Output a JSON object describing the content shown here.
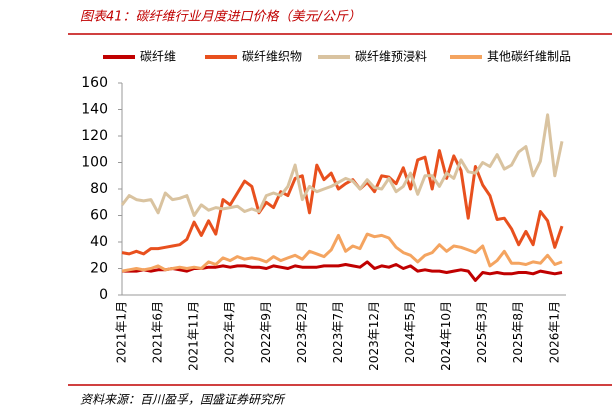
{
  "chart_data": {
    "type": "line",
    "title": "图表41：碳纤维行业月度进口价格（美元/公斤）",
    "source": "资料来源：百川盈孚，国盛证券研究所",
    "categories": [
      "2021年1月",
      null,
      null,
      null,
      null,
      "2021年6月",
      null,
      null,
      null,
      null,
      "2021年11月",
      null,
      null,
      null,
      null,
      "2022年4月",
      null,
      null,
      null,
      null,
      "2022年9月",
      null,
      null,
      null,
      null,
      "2023年2月",
      null,
      null,
      null,
      null,
      "2023年7月",
      null,
      null,
      null,
      null,
      "2023年12月",
      null,
      null,
      null,
      null,
      "2024年5月",
      null,
      null,
      null,
      null,
      "2024年10月",
      null,
      null,
      null,
      null,
      "2025年3月",
      null,
      null,
      null,
      null,
      "2025年8月",
      null,
      null,
      null,
      null,
      "2026年1月",
      null
    ],
    "ylim": [
      0,
      160
    ],
    "yticks": [
      0,
      20,
      40,
      60,
      80,
      100,
      120,
      140,
      160
    ],
    "series": [
      {
        "name": "碳纤维",
        "color": "#c00000",
        "width": 3,
        "values": [
          18,
          18,
          18,
          19,
          18,
          19,
          19,
          20,
          19,
          18,
          20,
          20,
          21,
          21,
          22,
          21,
          22,
          22,
          21,
          21,
          20,
          22,
          21,
          20,
          22,
          21,
          21,
          21,
          22,
          22,
          22,
          23,
          22,
          21,
          25,
          20,
          22,
          21,
          23,
          20,
          22,
          18,
          19,
          18,
          18,
          17,
          18,
          19,
          18,
          11,
          17,
          16,
          17,
          16,
          16,
          17,
          17,
          16,
          18,
          17,
          16,
          17
        ]
      },
      {
        "name": "碳纤维织物",
        "color": "#e8501e",
        "width": 3,
        "values": [
          32,
          31,
          33,
          31,
          35,
          35,
          36,
          37,
          38,
          42,
          55,
          45,
          56,
          46,
          72,
          68,
          77,
          86,
          82,
          62,
          70,
          66,
          78,
          75,
          88,
          90,
          62,
          98,
          87,
          92,
          80,
          84,
          87,
          80,
          85,
          78,
          90,
          89,
          84,
          96,
          80,
          102,
          104,
          80,
          109,
          88,
          105,
          94,
          58,
          97,
          83,
          75,
          57,
          58,
          50,
          38,
          48,
          38,
          63,
          56,
          36,
          52
        ]
      },
      {
        "name": "碳纤维预浸料",
        "color": "#d9c3a0",
        "width": 3,
        "values": [
          68,
          75,
          72,
          71,
          72,
          62,
          77,
          72,
          73,
          75,
          60,
          68,
          64,
          66,
          65,
          66,
          67,
          63,
          65,
          63,
          75,
          77,
          75,
          82,
          98,
          72,
          82,
          78,
          80,
          82,
          85,
          88,
          86,
          80,
          87,
          81,
          80,
          88,
          78,
          82,
          92,
          76,
          90,
          90,
          82,
          92,
          88,
          102,
          93,
          92,
          100,
          97,
          106,
          95,
          98,
          108,
          112,
          90,
          101,
          136,
          90,
          116
        ]
      },
      {
        "name": "其他碳纤维制品",
        "color": "#f4a460",
        "width": 3,
        "values": [
          18,
          19,
          20,
          19,
          20,
          22,
          19,
          20,
          21,
          20,
          21,
          20,
          25,
          23,
          28,
          26,
          29,
          27,
          28,
          27,
          25,
          29,
          26,
          28,
          30,
          27,
          33,
          31,
          29,
          34,
          45,
          33,
          37,
          35,
          46,
          44,
          45,
          43,
          36,
          32,
          30,
          25,
          30,
          32,
          38,
          33,
          37,
          36,
          34,
          32,
          37,
          22,
          26,
          33,
          24,
          24,
          23,
          25,
          24,
          30,
          23,
          25
        ]
      }
    ]
  }
}
